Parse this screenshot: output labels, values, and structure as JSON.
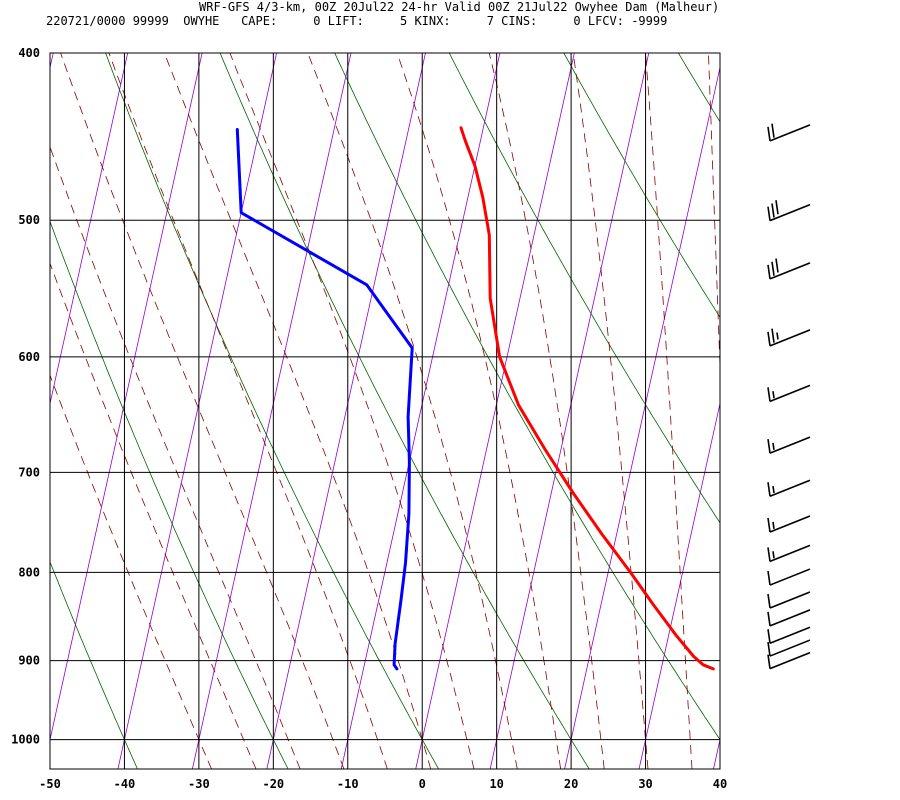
{
  "header": {
    "title": "WRF-GFS 4/3-km, 00Z 20Jul22 24-hr Valid 00Z 21Jul22 Owyhee Dam (Malheur)",
    "subtitle": "220721/0000 99999  OWYHE   CAPE:     0 LIFT:     5 KINX:     7 CINS:     0 LFCV: -9999"
  },
  "colors": {
    "temperature": "#ff0000",
    "dewpoint": "#0000ff",
    "dry_adiabat": "#006400",
    "moist_adiabat": "#8b0000",
    "isotherm_skewed": "#9400d3",
    "grid": "#000000"
  },
  "chart_data": {
    "type": "skew-t",
    "title": "WRF-GFS 4/3-km, 00Z 20Jul22 24-hr Valid 00Z 21Jul22 Owyhee Dam (Malheur)",
    "xlabel": "",
    "ylabel": "",
    "x_range": [
      -50,
      40
    ],
    "y_scale": "log",
    "p_range": [
      1040,
      400
    ],
    "x_ticks": [
      -50,
      -40,
      -30,
      -20,
      -10,
      0,
      10,
      20,
      30,
      40
    ],
    "p_ticks": [
      400,
      500,
      600,
      700,
      800,
      900,
      1000
    ],
    "series": [
      {
        "key": "temperature",
        "points": [
          [
            37,
            910
          ],
          [
            35.5,
            905
          ],
          [
            34,
            895
          ],
          [
            31,
            870
          ],
          [
            27,
            835
          ],
          [
            23,
            800
          ],
          [
            18,
            760
          ],
          [
            13,
            720
          ],
          [
            8,
            680
          ],
          [
            3,
            640
          ],
          [
            -1,
            600
          ],
          [
            -4,
            555
          ],
          [
            -6,
            510
          ],
          [
            -8,
            485
          ],
          [
            -10,
            465
          ],
          [
            -12,
            450
          ],
          [
            -13,
            442
          ]
        ]
      },
      {
        "key": "dewpoint",
        "points": [
          [
            -5.5,
            910
          ],
          [
            -6,
            905
          ],
          [
            -6.5,
            880
          ],
          [
            -7,
            830
          ],
          [
            -7.5,
            790
          ],
          [
            -8.5,
            740
          ],
          [
            -10,
            690
          ],
          [
            -11.5,
            650
          ],
          [
            -13,
            593
          ],
          [
            -21,
            545
          ],
          [
            -40,
            495
          ],
          [
            -43,
            443
          ]
        ]
      }
    ],
    "wind_barbs": [
      {
        "p": 445,
        "speed_kt": 20
      },
      {
        "p": 495,
        "speed_kt": 30
      },
      {
        "p": 535,
        "speed_kt": 30
      },
      {
        "p": 585,
        "speed_kt": 25
      },
      {
        "p": 630,
        "speed_kt": 15
      },
      {
        "p": 675,
        "speed_kt": 15
      },
      {
        "p": 715,
        "speed_kt": 15
      },
      {
        "p": 750,
        "speed_kt": 15
      },
      {
        "p": 780,
        "speed_kt": 15
      },
      {
        "p": 805,
        "speed_kt": 10
      },
      {
        "p": 830,
        "speed_kt": 10
      },
      {
        "p": 850,
        "speed_kt": 10
      },
      {
        "p": 870,
        "speed_kt": 10
      },
      {
        "p": 885,
        "speed_kt": 10
      },
      {
        "p": 900,
        "speed_kt": 10
      }
    ]
  }
}
